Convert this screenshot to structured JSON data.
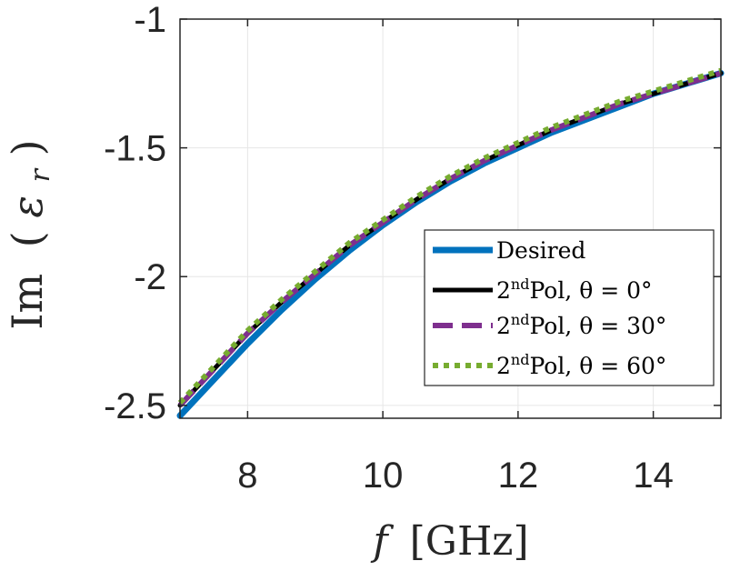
{
  "chart_data": {
    "type": "line",
    "title": "",
    "xlabel_parts": {
      "var": "f",
      "unit": "[GHz]"
    },
    "ylabel_parts": {
      "func": "Im",
      "open": "(",
      "var": "ε",
      "sub": "r",
      "close": ")"
    },
    "xlim": [
      7,
      15
    ],
    "ylim": [
      -2.55,
      -1
    ],
    "xticks": [
      8,
      10,
      12,
      14
    ],
    "xtick_labels": [
      "8",
      "10",
      "12",
      "14"
    ],
    "yticks": [
      -2.5,
      -2,
      -1.5,
      -1
    ],
    "ytick_labels": [
      "-2.5",
      "-2",
      "-1.5",
      "-1"
    ],
    "grid": true,
    "legend_placement": "lower-right",
    "x": [
      7,
      7.5,
      8,
      8.5,
      9,
      9.5,
      10,
      10.5,
      11,
      11.5,
      12,
      12.5,
      13,
      13.5,
      14,
      14.5,
      15
    ],
    "series": [
      {
        "name": "Desired",
        "color": "#0072bd",
        "dash": "solid",
        "values": [
          -2.54,
          -2.4,
          -2.26,
          -2.13,
          -2.01,
          -1.9,
          -1.8,
          -1.71,
          -1.63,
          -1.56,
          -1.5,
          -1.44,
          -1.39,
          -1.34,
          -1.29,
          -1.25,
          -1.21
        ]
      },
      {
        "name": "2ndPol, θ = 0°",
        "color": "#000000",
        "dash": "solid",
        "values": [
          -2.5,
          -2.36,
          -2.22,
          -2.1,
          -1.99,
          -1.88,
          -1.79,
          -1.7,
          -1.62,
          -1.55,
          -1.49,
          -1.43,
          -1.38,
          -1.33,
          -1.29,
          -1.25,
          -1.21
        ]
      },
      {
        "name": "2ndPol, θ = 30°",
        "color": "#7e2f8e",
        "dash": "dashed",
        "values": [
          -2.5,
          -2.36,
          -2.22,
          -2.1,
          -1.99,
          -1.88,
          -1.79,
          -1.7,
          -1.62,
          -1.55,
          -1.49,
          -1.43,
          -1.38,
          -1.33,
          -1.29,
          -1.25,
          -1.21
        ]
      },
      {
        "name": "2ndPol, θ = 60°",
        "color": "#77ac30",
        "dash": "dotted",
        "values": [
          -2.49,
          -2.35,
          -2.21,
          -2.09,
          -1.98,
          -1.87,
          -1.78,
          -1.69,
          -1.61,
          -1.54,
          -1.48,
          -1.42,
          -1.37,
          -1.32,
          -1.28,
          -1.24,
          -1.2
        ]
      }
    ],
    "legend": [
      {
        "prefix": "",
        "sup": "",
        "text": "Desired"
      },
      {
        "prefix": "2",
        "sup": "nd",
        "text": "Pol, θ = 0°"
      },
      {
        "prefix": "2",
        "sup": "nd",
        "text": "Pol, θ = 30°"
      },
      {
        "prefix": "2",
        "sup": "nd",
        "text": "Pol, θ = 60°"
      }
    ]
  }
}
